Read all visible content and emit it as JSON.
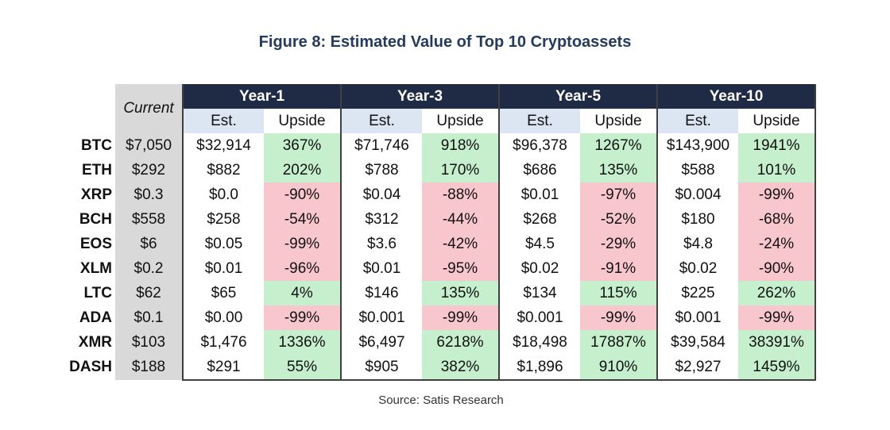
{
  "title": "Figure 8: Estimated Value of Top 10 Cryptoassets",
  "source": "Source: Satis Research",
  "current_label": "Current",
  "colors": {
    "header": "#1f2b45",
    "subheader": "#dce6f2",
    "positive": "#c6efce",
    "negative": "#f8c7ce",
    "current": "#d9d9d9",
    "title": "#243a5e"
  },
  "chart_data": {
    "type": "table",
    "title": "Figure 8: Estimated Value of Top 10 Cryptoassets",
    "periods": [
      "Year-1",
      "Year-3",
      "Year-5",
      "Year-10"
    ],
    "subheaders": [
      "Est.",
      "Upside"
    ],
    "rows": [
      {
        "ticker": "BTC",
        "current": "$7,050",
        "values": [
          [
            "$32,914",
            "367%"
          ],
          [
            "$71,746",
            "918%"
          ],
          [
            "$96,378",
            "1267%"
          ],
          [
            "$143,900",
            "1941%"
          ]
        ]
      },
      {
        "ticker": "ETH",
        "current": "$292",
        "values": [
          [
            "$882",
            "202%"
          ],
          [
            "$788",
            "170%"
          ],
          [
            "$686",
            "135%"
          ],
          [
            "$588",
            "101%"
          ]
        ]
      },
      {
        "ticker": "XRP",
        "current": "$0.3",
        "values": [
          [
            "$0.0",
            "-90%"
          ],
          [
            "$0.04",
            "-88%"
          ],
          [
            "$0.01",
            "-97%"
          ],
          [
            "$0.004",
            "-99%"
          ]
        ]
      },
      {
        "ticker": "BCH",
        "current": "$558",
        "values": [
          [
            "$258",
            "-54%"
          ],
          [
            "$312",
            "-44%"
          ],
          [
            "$268",
            "-52%"
          ],
          [
            "$180",
            "-68%"
          ]
        ]
      },
      {
        "ticker": "EOS",
        "current": "$6",
        "values": [
          [
            "$0.05",
            "-99%"
          ],
          [
            "$3.6",
            "-42%"
          ],
          [
            "$4.5",
            "-29%"
          ],
          [
            "$4.8",
            "-24%"
          ]
        ]
      },
      {
        "ticker": "XLM",
        "current": "$0.2",
        "values": [
          [
            "$0.01",
            "-96%"
          ],
          [
            "$0.01",
            "-95%"
          ],
          [
            "$0.02",
            "-91%"
          ],
          [
            "$0.02",
            "-90%"
          ]
        ]
      },
      {
        "ticker": "LTC",
        "current": "$62",
        "values": [
          [
            "$65",
            "4%"
          ],
          [
            "$146",
            "135%"
          ],
          [
            "$134",
            "115%"
          ],
          [
            "$225",
            "262%"
          ]
        ]
      },
      {
        "ticker": "ADA",
        "current": "$0.1",
        "values": [
          [
            "$0.00",
            "-99%"
          ],
          [
            "$0.001",
            "-99%"
          ],
          [
            "$0.001",
            "-99%"
          ],
          [
            "$0.001",
            "-99%"
          ]
        ]
      },
      {
        "ticker": "XMR",
        "current": "$103",
        "values": [
          [
            "$1,476",
            "1336%"
          ],
          [
            "$6,497",
            "6218%"
          ],
          [
            "$18,498",
            "17887%"
          ],
          [
            "$39,584",
            "38391%"
          ]
        ]
      },
      {
        "ticker": "DASH",
        "current": "$188",
        "values": [
          [
            "$291",
            "55%"
          ],
          [
            "$905",
            "382%"
          ],
          [
            "$1,896",
            "910%"
          ],
          [
            "$2,927",
            "1459%"
          ]
        ]
      }
    ]
  }
}
